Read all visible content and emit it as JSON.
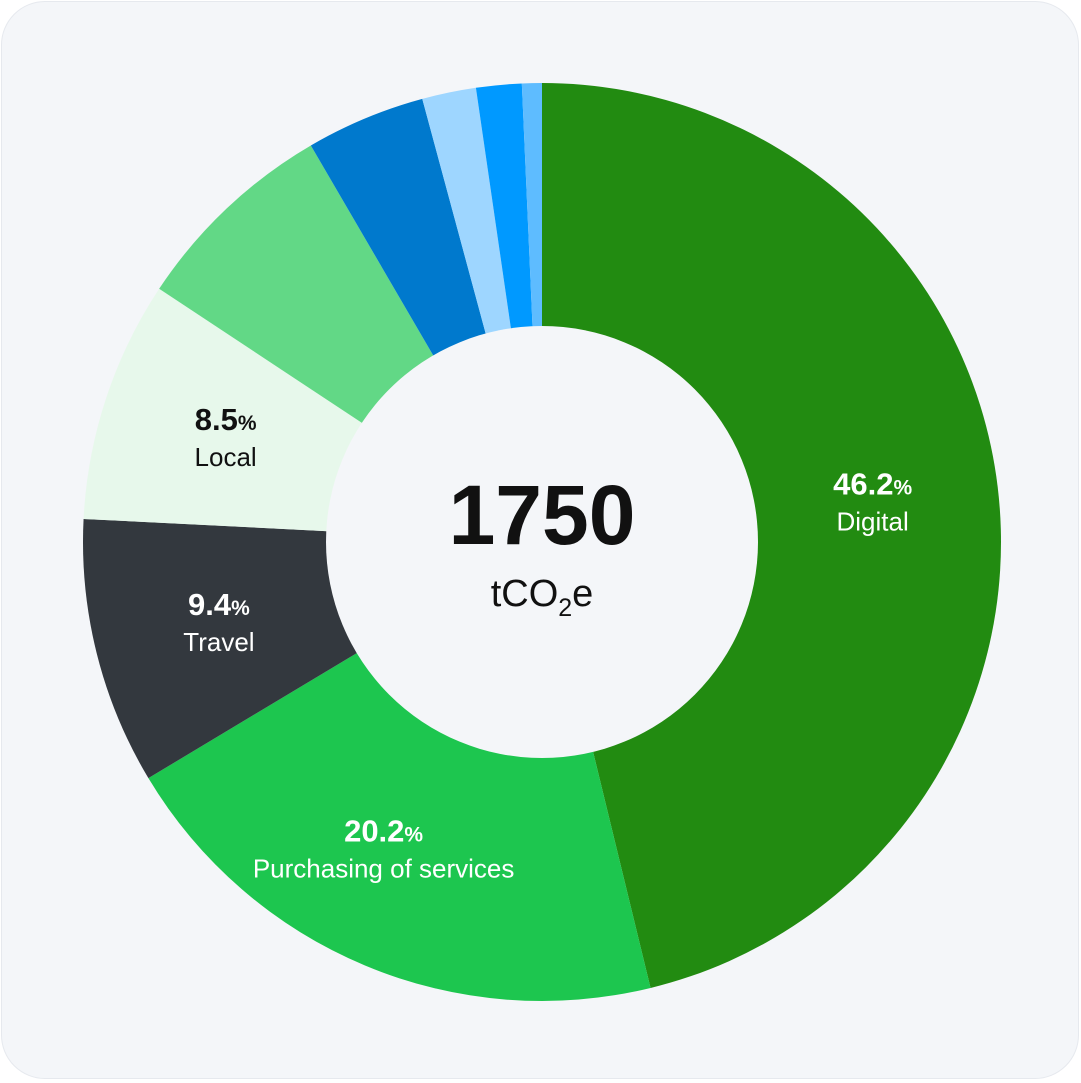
{
  "chart_data": {
    "type": "pie",
    "variant": "donut",
    "center": {
      "total": "1750",
      "unit_base": "tCO",
      "unit_sub": "2",
      "unit_tail": "e"
    },
    "percent_symbol": "%",
    "slices": [
      {
        "label": "Digital",
        "value": 46.2,
        "value_text": "46.2",
        "color": "#228b11",
        "text_color": "#ffffff",
        "show_label": true
      },
      {
        "label": "Purchasing of services",
        "value": 20.2,
        "value_text": "20.2",
        "color": "#1dc64f",
        "text_color": "#ffffff",
        "show_label": true
      },
      {
        "label": "Travel",
        "value": 9.4,
        "value_text": "9.4",
        "color": "#33383e",
        "text_color": "#ffffff",
        "show_label": true
      },
      {
        "label": "Local",
        "value": 8.5,
        "value_text": "8.5",
        "color": "#e7f8eb",
        "text_color": "#111111",
        "show_label": true
      },
      {
        "label": "",
        "value": 7.3,
        "color": "#62d886",
        "show_label": false
      },
      {
        "label": "",
        "value": 4.2,
        "color": "#0079cd",
        "show_label": false
      },
      {
        "label": "",
        "value": 1.9,
        "color": "#9ed6ff",
        "show_label": false
      },
      {
        "label": "",
        "value": 1.6,
        "color": "#0099ff",
        "show_label": false
      },
      {
        "label": "",
        "value": 0.7,
        "color": "#5ebcff",
        "show_label": false
      }
    ]
  }
}
